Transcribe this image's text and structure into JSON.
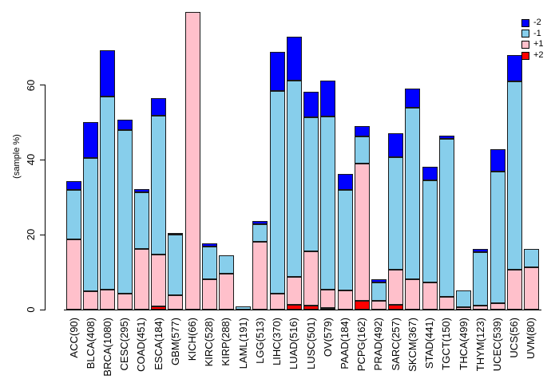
{
  "chart_data": {
    "type": "bar",
    "stacked": true,
    "title": "",
    "xlabel": "",
    "ylabel": "(sample %)",
    "ylim": [
      0,
      80
    ],
    "yticks": [
      0,
      20,
      40,
      60
    ],
    "grid": false,
    "legend_position": "top-right",
    "stack_order_bottom_to_top": [
      "+2",
      "+1",
      "-1",
      "-2"
    ],
    "categories": [
      "ACC(90)",
      "BLCA(408)",
      "BRCA(1080)",
      "CESC(295)",
      "COAD(451)",
      "ESCA(184)",
      "GBM(577)",
      "KICH(66)",
      "KIRC(528)",
      "KIRP(288)",
      "LAML(191)",
      "LGG(513)",
      "LIHC(370)",
      "LUAD(516)",
      "LUSC(501)",
      "OV(579)",
      "PAAD(184)",
      "PCPG(162)",
      "PRAD(492)",
      "SARC(257)",
      "SKCM(367)",
      "STAD(441)",
      "TGCT(150)",
      "THCA(499)",
      "THYM(123)",
      "UCEC(539)",
      "UCS(56)",
      "UVM(80)"
    ],
    "series": [
      {
        "name": "-2",
        "color": "#0000FF",
        "values": [
          2.3,
          9.7,
          12.4,
          2.8,
          0.9,
          4.6,
          0.3,
          0,
          0.9,
          0,
          0,
          0.8,
          10.5,
          11.8,
          6.9,
          9.6,
          4.3,
          2.7,
          0.8,
          6.4,
          5.2,
          3.6,
          0.8,
          0,
          0.9,
          6.0,
          7.0,
          0
        ]
      },
      {
        "name": "-1",
        "color": "#87CEEB",
        "values": [
          13.3,
          35.6,
          51.7,
          43.7,
          15.2,
          37.1,
          16.3,
          0,
          8.8,
          4.8,
          0.8,
          4.7,
          54.2,
          52.4,
          35.9,
          46.3,
          26.9,
          7.2,
          4.9,
          30.0,
          45.8,
          27.3,
          42.3,
          4.4,
          14.3,
          35.2,
          50.4,
          4.9
        ]
      },
      {
        "name": "+1",
        "color": "#FFC0CB",
        "values": [
          18.8,
          4.8,
          5.3,
          4.3,
          16.2,
          13.8,
          3.9,
          79.5,
          8.0,
          9.5,
          0,
          18.1,
          4.3,
          7.5,
          14.6,
          4.9,
          5.2,
          36.6,
          2.3,
          9.3,
          8.2,
          7.3,
          3.4,
          0.6,
          1.0,
          1.8,
          10.7,
          11.4
        ]
      },
      {
        "name": "+2",
        "color": "#FF0000",
        "values": [
          0,
          0,
          0,
          0,
          0,
          0.8,
          0,
          0,
          0,
          0,
          0,
          0,
          0,
          1.2,
          1.1,
          0.4,
          0,
          2.4,
          0,
          1.2,
          0,
          0,
          0,
          0,
          0,
          0,
          0,
          0
        ]
      }
    ],
    "legend": [
      {
        "label": "-2",
        "color": "#0000FF"
      },
      {
        "label": "-1",
        "color": "#87CEEB"
      },
      {
        "label": "+1",
        "color": "#FFC0CB"
      },
      {
        "label": "+2",
        "color": "#FF0000"
      }
    ]
  }
}
